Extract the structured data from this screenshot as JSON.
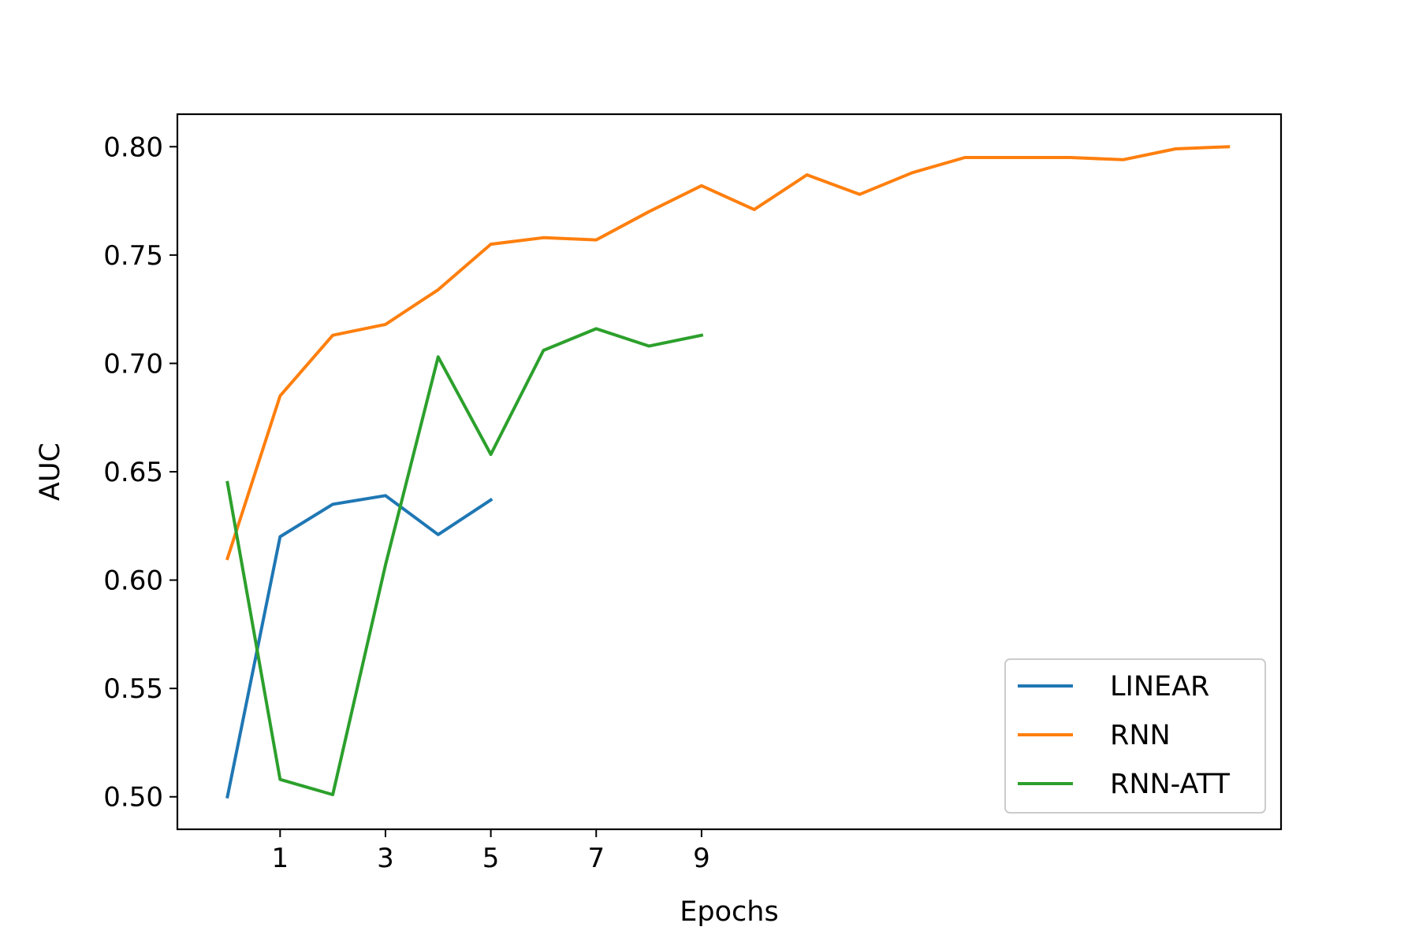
{
  "chart_data": {
    "type": "line",
    "title": "",
    "xlabel": "Epochs",
    "ylabel": "AUC",
    "xlim": [
      -0.95,
      20.0
    ],
    "ylim": [
      0.485,
      0.815
    ],
    "x_ticks": [
      1,
      3,
      5,
      7,
      9
    ],
    "x_tick_labels": [
      "1",
      "3",
      "5",
      "7",
      "9"
    ],
    "y_ticks": [
      0.5,
      0.55,
      0.6,
      0.65,
      0.7,
      0.75,
      0.8
    ],
    "y_tick_labels": [
      "0.50",
      "0.55",
      "0.60",
      "0.65",
      "0.70",
      "0.75",
      "0.80"
    ],
    "grid": false,
    "legend": {
      "position": "bottom-right"
    },
    "series": [
      {
        "name": "LINEAR",
        "color": "#1f77b4",
        "x": [
          0,
          1,
          2,
          3,
          4,
          5
        ],
        "y": [
          0.5,
          0.62,
          0.635,
          0.639,
          0.621,
          0.637
        ]
      },
      {
        "name": "RNN",
        "color": "#ff7f0e",
        "x": [
          0,
          1,
          2,
          3,
          4,
          5,
          6,
          7,
          8,
          9,
          10,
          11,
          12,
          13,
          14,
          15,
          16,
          17,
          18,
          19
        ],
        "y": [
          0.61,
          0.685,
          0.713,
          0.718,
          0.734,
          0.755,
          0.758,
          0.757,
          0.77,
          0.782,
          0.771,
          0.787,
          0.778,
          0.788,
          0.795,
          0.795,
          0.795,
          0.794,
          0.799,
          0.8
        ]
      },
      {
        "name": "RNN-ATT",
        "color": "#2ca02c",
        "x": [
          0,
          1,
          2,
          3,
          4,
          5,
          6,
          7,
          8,
          9
        ],
        "y": [
          0.645,
          0.508,
          0.501,
          0.607,
          0.703,
          0.658,
          0.706,
          0.716,
          0.708,
          0.713
        ]
      }
    ]
  }
}
